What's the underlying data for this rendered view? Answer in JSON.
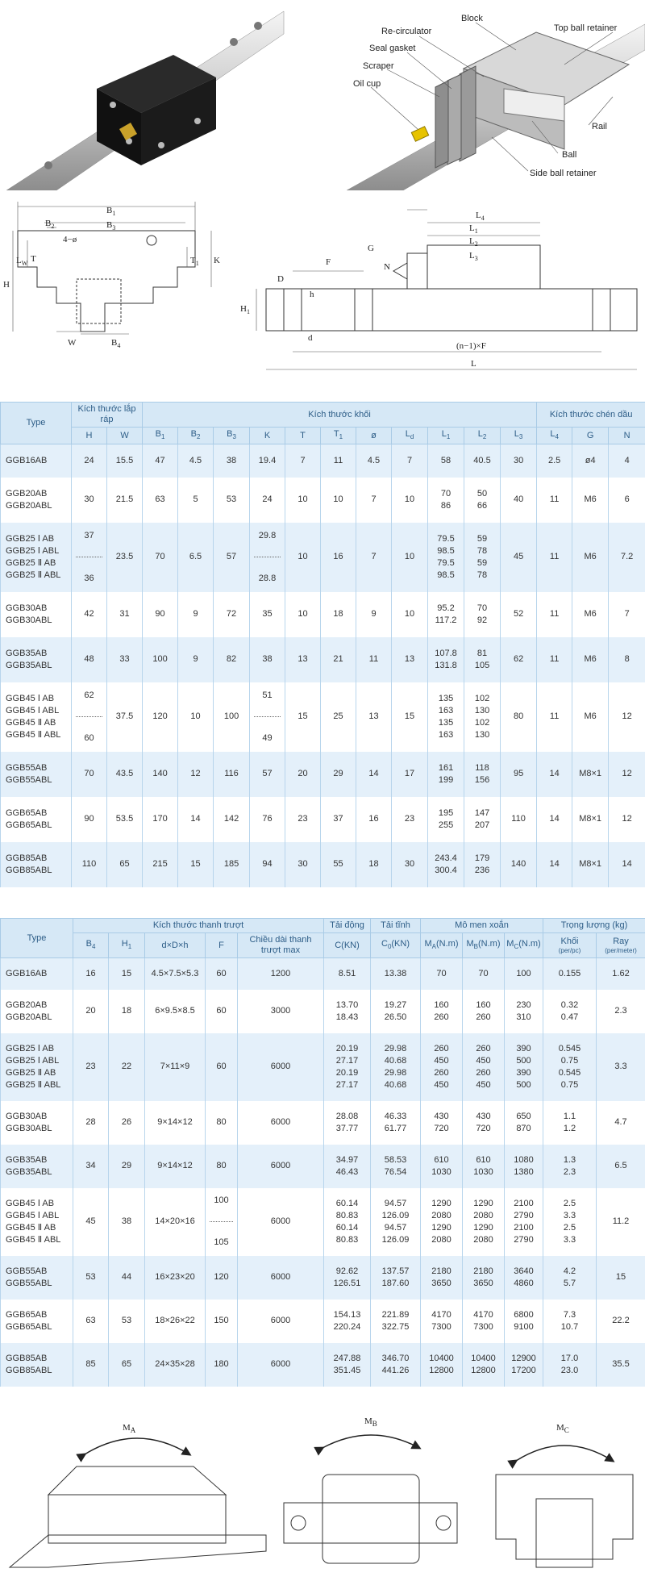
{
  "top": {
    "labels": [
      "Block",
      "Re-circulator",
      "Top ball retainer",
      "Seal gasket",
      "Scraper",
      "Oil cup",
      "Rail",
      "Ball",
      "Side ball retainer"
    ]
  },
  "drawings": {
    "left": [
      {
        "text": "B",
        "sub": "1"
      },
      {
        "text": "B",
        "sub": "2"
      },
      {
        "text": "B",
        "sub": "3"
      },
      "4−ø",
      {
        "text": "L",
        "sub": "W"
      },
      "T",
      {
        "text": "T",
        "sub": "1"
      },
      "H",
      "K",
      "W",
      {
        "text": "B",
        "sub": "4"
      }
    ],
    "right": [
      {
        "text": "L",
        "sub": "4"
      },
      {
        "text": "L",
        "sub": "1"
      },
      {
        "text": "L",
        "sub": "2"
      },
      {
        "text": "L",
        "sub": "3"
      },
      "G",
      "N",
      "F",
      "D",
      "h",
      {
        "text": "H",
        "sub": "1"
      },
      "d",
      "(n−1)×F",
      "L"
    ]
  },
  "table1": {
    "type_header": "Type",
    "groups": [
      {
        "label": "Kích thước lắp ráp",
        "columns": [
          "H",
          "W"
        ]
      },
      {
        "label": "Kích thước khối",
        "columns": [
          {
            "text": "B",
            "sub": "1"
          },
          {
            "text": "B",
            "sub": "2"
          },
          {
            "text": "B",
            "sub": "3"
          },
          "K",
          "T",
          {
            "text": "T",
            "sub": "1"
          },
          "ø",
          {
            "text": "L",
            "sub": "d"
          },
          {
            "text": "L",
            "sub": "1"
          },
          {
            "text": "L",
            "sub": "2"
          },
          {
            "text": "L",
            "sub": "3"
          }
        ]
      },
      {
        "label": "Kích thước chén dầu",
        "columns": [
          {
            "text": "L",
            "sub": "4"
          },
          "G",
          "N"
        ]
      }
    ],
    "rows": [
      {
        "type": [
          "GGB16AB"
        ],
        "cells": [
          [
            "24"
          ],
          [
            "15.5"
          ],
          [
            "47"
          ],
          [
            "4.5"
          ],
          [
            "38"
          ],
          [
            "19.4"
          ],
          [
            "7"
          ],
          [
            "11"
          ],
          [
            "4.5"
          ],
          [
            "7"
          ],
          [
            "58"
          ],
          [
            "40.5"
          ],
          [
            "30"
          ],
          [
            "2.5"
          ],
          [
            "ø4"
          ],
          [
            "4"
          ]
        ]
      },
      {
        "type": [
          "GGB20AB",
          "GGB20ABL"
        ],
        "cells": [
          [
            "30"
          ],
          [
            "21.5"
          ],
          [
            "63"
          ],
          [
            "5"
          ],
          [
            "53"
          ],
          [
            "24"
          ],
          [
            "10"
          ],
          [
            "10"
          ],
          [
            "7"
          ],
          [
            "10"
          ],
          [
            "70",
            "86"
          ],
          [
            "50",
            "66"
          ],
          [
            "40"
          ],
          [
            "11"
          ],
          [
            "M6"
          ],
          [
            "6"
          ]
        ]
      },
      {
        "type": [
          "GGB25 Ⅰ AB",
          "GGB25 Ⅰ ABL",
          "GGB25 Ⅱ AB",
          "GGB25 Ⅱ ABL"
        ],
        "cells": [
          [
            "37",
            "36"
          ],
          [
            "23.5"
          ],
          [
            "70"
          ],
          [
            "6.5"
          ],
          [
            "57"
          ],
          [
            "29.8",
            "28.8"
          ],
          [
            "10"
          ],
          [
            "16"
          ],
          [
            "7"
          ],
          [
            "10"
          ],
          [
            "79.5",
            "98.5",
            "79.5",
            "98.5"
          ],
          [
            "59",
            "78",
            "59",
            "78"
          ],
          [
            "45"
          ],
          [
            "11"
          ],
          [
            "M6"
          ],
          [
            "7.2"
          ]
        ]
      },
      {
        "type": [
          "GGB30AB",
          "GGB30ABL"
        ],
        "cells": [
          [
            "42"
          ],
          [
            "31"
          ],
          [
            "90"
          ],
          [
            "9"
          ],
          [
            "72"
          ],
          [
            "35"
          ],
          [
            "10"
          ],
          [
            "18"
          ],
          [
            "9"
          ],
          [
            "10"
          ],
          [
            "95.2",
            "117.2"
          ],
          [
            "70",
            "92"
          ],
          [
            "52"
          ],
          [
            "11"
          ],
          [
            "M6"
          ],
          [
            "7"
          ]
        ]
      },
      {
        "type": [
          "GGB35AB",
          "GGB35ABL"
        ],
        "cells": [
          [
            "48"
          ],
          [
            "33"
          ],
          [
            "100"
          ],
          [
            "9"
          ],
          [
            "82"
          ],
          [
            "38"
          ],
          [
            "13"
          ],
          [
            "21"
          ],
          [
            "11"
          ],
          [
            "13"
          ],
          [
            "107.8",
            "131.8"
          ],
          [
            "81",
            "105"
          ],
          [
            "62"
          ],
          [
            "11"
          ],
          [
            "M6"
          ],
          [
            "8"
          ]
        ]
      },
      {
        "type": [
          "GGB45 Ⅰ AB",
          "GGB45 Ⅰ ABL",
          "GGB45 Ⅱ AB",
          "GGB45 Ⅱ ABL"
        ],
        "cells": [
          [
            "62",
            "60"
          ],
          [
            "37.5"
          ],
          [
            "120"
          ],
          [
            "10"
          ],
          [
            "100"
          ],
          [
            "51",
            "49"
          ],
          [
            "15"
          ],
          [
            "25"
          ],
          [
            "13"
          ],
          [
            "15"
          ],
          [
            "135",
            "163",
            "135",
            "163"
          ],
          [
            "102",
            "130",
            "102",
            "130"
          ],
          [
            "80"
          ],
          [
            "11"
          ],
          [
            "M6"
          ],
          [
            "12"
          ]
        ]
      },
      {
        "type": [
          "GGB55AB",
          "GGB55ABL"
        ],
        "cells": [
          [
            "70"
          ],
          [
            "43.5"
          ],
          [
            "140"
          ],
          [
            "12"
          ],
          [
            "116"
          ],
          [
            "57"
          ],
          [
            "20"
          ],
          [
            "29"
          ],
          [
            "14"
          ],
          [
            "17"
          ],
          [
            "161",
            "199"
          ],
          [
            "118",
            "156"
          ],
          [
            "95"
          ],
          [
            "14"
          ],
          [
            "M8×1"
          ],
          [
            "12"
          ]
        ]
      },
      {
        "type": [
          "GGB65AB",
          "GGB65ABL"
        ],
        "cells": [
          [
            "90"
          ],
          [
            "53.5"
          ],
          [
            "170"
          ],
          [
            "14"
          ],
          [
            "142"
          ],
          [
            "76"
          ],
          [
            "23"
          ],
          [
            "37"
          ],
          [
            "16"
          ],
          [
            "23"
          ],
          [
            "195",
            "255"
          ],
          [
            "147",
            "207"
          ],
          [
            "110"
          ],
          [
            "14"
          ],
          [
            "M8×1"
          ],
          [
            "12"
          ]
        ]
      },
      {
        "type": [
          "GGB85AB",
          "GGB85ABL"
        ],
        "cells": [
          [
            "110"
          ],
          [
            "65"
          ],
          [
            "215"
          ],
          [
            "15"
          ],
          [
            "185"
          ],
          [
            "94"
          ],
          [
            "30"
          ],
          [
            "55"
          ],
          [
            "18"
          ],
          [
            "30"
          ],
          [
            "243.4",
            "300.4"
          ],
          [
            "179",
            "236"
          ],
          [
            "140"
          ],
          [
            "14"
          ],
          [
            "M8×1"
          ],
          [
            "14"
          ]
        ]
      }
    ]
  },
  "table2": {
    "type_header": "Type",
    "groups": [
      {
        "label": "Kích thước thanh trượt",
        "columns": [
          {
            "text": "B",
            "sub": "4"
          },
          {
            "text": "H",
            "sub": "1"
          },
          "d×D×h",
          "F",
          "Chiều dài thanh trượt max"
        ]
      },
      {
        "label": "Tải động",
        "columns": [
          "C(KN)"
        ]
      },
      {
        "label": "Tải tĩnh",
        "columns": [
          {
            "text": "C",
            "sub": "0",
            "after": "(KN)"
          }
        ]
      },
      {
        "label": "Mô men xoắn",
        "columns": [
          {
            "text": "M",
            "sub": "A",
            "after": "(N.m)"
          },
          {
            "text": "M",
            "sub": "B",
            "after": "(N.m)"
          },
          {
            "text": "M",
            "sub": "C",
            "after": "(N.m)"
          }
        ]
      },
      {
        "label": "Trọng lượng (kg)",
        "columns": [
          {
            "text": "Khối",
            "note": "(per/pc)"
          },
          {
            "text": "Ray",
            "note": "(per/meter)"
          }
        ]
      }
    ],
    "rows": [
      {
        "type": [
          "GGB16AB"
        ],
        "cells": [
          [
            "16"
          ],
          [
            "15"
          ],
          [
            "4.5×7.5×5.3"
          ],
          [
            "60"
          ],
          [
            "1200"
          ],
          [
            "8.51"
          ],
          [
            "13.38"
          ],
          [
            "70"
          ],
          [
            "70"
          ],
          [
            "100"
          ],
          [
            "0.155"
          ],
          [
            "1.62"
          ]
        ]
      },
      {
        "type": [
          "GGB20AB",
          "GGB20ABL"
        ],
        "cells": [
          [
            "20"
          ],
          [
            "18"
          ],
          [
            "6×9.5×8.5"
          ],
          [
            "60"
          ],
          [
            "3000"
          ],
          [
            "13.70",
            "18.43"
          ],
          [
            "19.27",
            "26.50"
          ],
          [
            "160",
            "260"
          ],
          [
            "160",
            "260"
          ],
          [
            "230",
            "310"
          ],
          [
            "0.32",
            "0.47"
          ],
          [
            "2.3"
          ]
        ]
      },
      {
        "type": [
          "GGB25 Ⅰ AB",
          "GGB25 Ⅰ ABL",
          "GGB25 Ⅱ AB",
          "GGB25 Ⅱ ABL"
        ],
        "cells": [
          [
            "23"
          ],
          [
            "22"
          ],
          [
            "7×11×9"
          ],
          [
            "60"
          ],
          [
            "6000"
          ],
          [
            "20.19",
            "27.17",
            "20.19",
            "27.17"
          ],
          [
            "29.98",
            "40.68",
            "29.98",
            "40.68"
          ],
          [
            "260",
            "450",
            "260",
            "450"
          ],
          [
            "260",
            "450",
            "260",
            "450"
          ],
          [
            "390",
            "500",
            "390",
            "500"
          ],
          [
            "0.545",
            "0.75",
            "0.545",
            "0.75"
          ],
          [
            "3.3"
          ]
        ]
      },
      {
        "type": [
          "GGB30AB",
          "GGB30ABL"
        ],
        "cells": [
          [
            "28"
          ],
          [
            "26"
          ],
          [
            "9×14×12"
          ],
          [
            "80"
          ],
          [
            "6000"
          ],
          [
            "28.08",
            "37.77"
          ],
          [
            "46.33",
            "61.77"
          ],
          [
            "430",
            "720"
          ],
          [
            "430",
            "720"
          ],
          [
            "650",
            "870"
          ],
          [
            "1.1",
            "1.2"
          ],
          [
            "4.7"
          ]
        ]
      },
      {
        "type": [
          "GGB35AB",
          "GGB35ABL"
        ],
        "cells": [
          [
            "34"
          ],
          [
            "29"
          ],
          [
            "9×14×12"
          ],
          [
            "80"
          ],
          [
            "6000"
          ],
          [
            "34.97",
            "46.43"
          ],
          [
            "58.53",
            "76.54"
          ],
          [
            "610",
            "1030"
          ],
          [
            "610",
            "1030"
          ],
          [
            "1080",
            "1380"
          ],
          [
            "1.3",
            "2.3"
          ],
          [
            "6.5"
          ]
        ]
      },
      {
        "type": [
          "GGB45 Ⅰ AB",
          "GGB45 Ⅰ ABL",
          "GGB45 Ⅱ AB",
          "GGB45 Ⅱ ABL"
        ],
        "cells": [
          [
            "45"
          ],
          [
            "38"
          ],
          [
            "14×20×16"
          ],
          [
            "100",
            "105"
          ],
          [
            "6000"
          ],
          [
            "60.14",
            "80.83",
            "60.14",
            "80.83"
          ],
          [
            "94.57",
            "126.09",
            "94.57",
            "126.09"
          ],
          [
            "1290",
            "2080",
            "1290",
            "2080"
          ],
          [
            "1290",
            "2080",
            "1290",
            "2080"
          ],
          [
            "2100",
            "2790",
            "2100",
            "2790"
          ],
          [
            "2.5",
            "3.3",
            "2.5",
            "3.3"
          ],
          [
            "11.2"
          ]
        ]
      },
      {
        "type": [
          "GGB55AB",
          "GGB55ABL"
        ],
        "cells": [
          [
            "53"
          ],
          [
            "44"
          ],
          [
            "16×23×20"
          ],
          [
            "120"
          ],
          [
            "6000"
          ],
          [
            "92.62",
            "126.51"
          ],
          [
            "137.57",
            "187.60"
          ],
          [
            "2180",
            "3650"
          ],
          [
            "2180",
            "3650"
          ],
          [
            "3640",
            "4860"
          ],
          [
            "4.2",
            "5.7"
          ],
          [
            "15"
          ]
        ]
      },
      {
        "type": [
          "GGB65AB",
          "GGB65ABL"
        ],
        "cells": [
          [
            "63"
          ],
          [
            "53"
          ],
          [
            "18×26×22"
          ],
          [
            "150"
          ],
          [
            "6000"
          ],
          [
            "154.13",
            "220.24"
          ],
          [
            "221.89",
            "322.75"
          ],
          [
            "4170",
            "7300"
          ],
          [
            "4170",
            "7300"
          ],
          [
            "6800",
            "9100"
          ],
          [
            "7.3",
            "10.7"
          ],
          [
            "22.2"
          ]
        ]
      },
      {
        "type": [
          "GGB85AB",
          "GGB85ABL"
        ],
        "cells": [
          [
            "85"
          ],
          [
            "65"
          ],
          [
            "24×35×28"
          ],
          [
            "180"
          ],
          [
            "6000"
          ],
          [
            "247.88",
            "351.45"
          ],
          [
            "346.70",
            "441.26"
          ],
          [
            "10400",
            "12800"
          ],
          [
            "10400",
            "12800"
          ],
          [
            "12900",
            "17200"
          ],
          [
            "17.0",
            "23.0"
          ],
          [
            "35.5"
          ]
        ]
      }
    ]
  },
  "moments": [
    {
      "text": "M",
      "sub": "A"
    },
    {
      "text": "M",
      "sub": "B"
    },
    {
      "text": "M",
      "sub": "C"
    }
  ]
}
